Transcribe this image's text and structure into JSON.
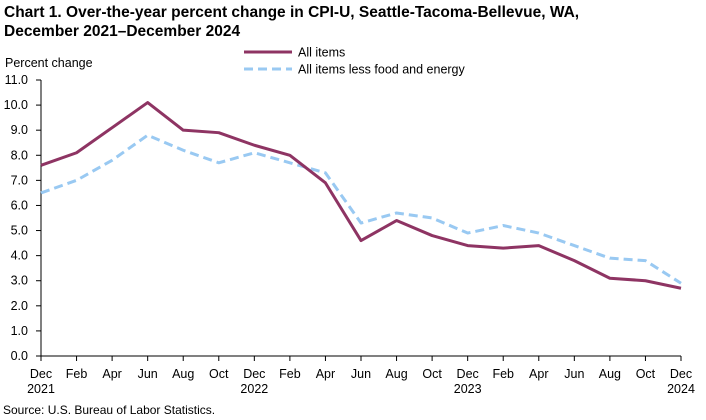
{
  "chart_data": {
    "type": "line",
    "title": "Chart 1. Over-the-year percent change in CPI-U, Seattle-Tacoma-Bellevue,  WA, December 2021–December  2024",
    "title_lines": [
      "Chart 1. Over-the-year percent change in CPI-U, Seattle-Tacoma-Bellevue,  WA,",
      "December 2021–December  2024"
    ],
    "ylabel": "Percent change",
    "xlabel": "",
    "ylim": [
      0,
      11
    ],
    "yticks": [
      "0.0",
      "1.0",
      "2.0",
      "3.0",
      "4.0",
      "5.0",
      "6.0",
      "7.0",
      "8.0",
      "9.0",
      "10.0",
      "11.0"
    ],
    "x_tick_labels": [
      {
        "month": "Dec",
        "year": "2021"
      },
      {
        "month": "Feb",
        "year": ""
      },
      {
        "month": "Apr",
        "year": ""
      },
      {
        "month": "Jun",
        "year": ""
      },
      {
        "month": "Aug",
        "year": ""
      },
      {
        "month": "Oct",
        "year": ""
      },
      {
        "month": "Dec",
        "year": "2022"
      },
      {
        "month": "Feb",
        "year": ""
      },
      {
        "month": "Apr",
        "year": ""
      },
      {
        "month": "Jun",
        "year": ""
      },
      {
        "month": "Aug",
        "year": ""
      },
      {
        "month": "Oct",
        "year": ""
      },
      {
        "month": "Dec",
        "year": "2023"
      },
      {
        "month": "Feb",
        "year": ""
      },
      {
        "month": "Apr",
        "year": ""
      },
      {
        "month": "Jun",
        "year": ""
      },
      {
        "month": "Aug",
        "year": ""
      },
      {
        "month": "Oct",
        "year": ""
      },
      {
        "month": "Dec",
        "year": "2024"
      }
    ],
    "x": [
      "Dec 2021",
      "Feb 2022",
      "Apr 2022",
      "Jun 2022",
      "Aug 2022",
      "Oct 2022",
      "Dec 2022",
      "Feb 2023",
      "Apr 2023",
      "Jun 2023",
      "Aug 2023",
      "Oct 2023",
      "Dec 2023",
      "Feb 2024",
      "Apr 2024",
      "Jun 2024",
      "Aug 2024",
      "Oct 2024",
      "Dec 2024"
    ],
    "series": [
      {
        "name": "All items",
        "color": "#8e3463",
        "style": "solid",
        "values": [
          7.6,
          8.1,
          9.1,
          10.1,
          9.0,
          8.9,
          8.4,
          8.0,
          6.9,
          4.6,
          5.4,
          4.8,
          4.4,
          4.3,
          4.4,
          3.8,
          3.1,
          3.0,
          2.7
        ]
      },
      {
        "name": "All items less food and energy",
        "color": "#99c9f2",
        "style": "dashed",
        "values": [
          6.5,
          7.0,
          7.8,
          8.8,
          8.2,
          7.7,
          8.1,
          7.7,
          7.3,
          5.3,
          5.7,
          5.5,
          4.9,
          5.2,
          4.9,
          4.4,
          3.9,
          3.8,
          2.9
        ]
      }
    ],
    "grid": false,
    "legend_position": "top-center"
  },
  "source": "Source: U.S. Bureau  of Labor Statistics."
}
